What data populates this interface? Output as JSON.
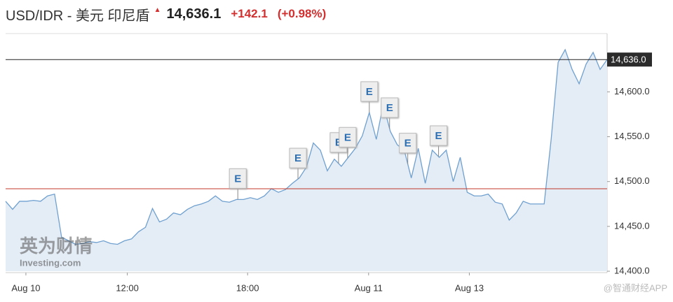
{
  "header": {
    "title": "USD/IDR - 美元 印尼盾",
    "price": "14,636.1",
    "change": "+142.1",
    "change_pct": "(+0.98%)"
  },
  "chart_data": {
    "type": "area",
    "values": [
      14478,
      14469,
      14478,
      14478,
      14479,
      14478,
      14484,
      14486,
      14438,
      14434,
      14430,
      14431,
      14433,
      14432,
      14434,
      14431,
      14430,
      14434,
      14436,
      14444,
      14449,
      14470,
      14455,
      14458,
      14465,
      14463,
      14469,
      14473,
      14475,
      14478,
      14484,
      14478,
      14477,
      14480,
      14480,
      14482,
      14480,
      14484,
      14492,
      14488,
      14491,
      14498,
      14504,
      14516,
      14543,
      14535,
      14512,
      14525,
      14517,
      14527,
      14537,
      14551,
      14577,
      14547,
      14586,
      14556,
      14541,
      14535,
      14504,
      14537,
      14498,
      14535,
      14527,
      14535,
      14500,
      14527,
      14488,
      14484,
      14484,
      14486,
      14477,
      14475,
      14457,
      14465,
      14478,
      14475,
      14475,
      14475,
      14547,
      14633,
      14647,
      14625,
      14609,
      14631,
      14644,
      14625,
      14636
    ],
    "color": "#6fa0cf",
    "xlim": [
      0,
      86
    ],
    "xticks": [
      {
        "value": 2.9,
        "label": "Aug 10"
      },
      {
        "value": 17.4,
        "label": "12:00"
      },
      {
        "value": 34.6,
        "label": "18:00"
      },
      {
        "value": 51.9,
        "label": "Aug 11"
      },
      {
        "value": 66.3,
        "label": "Aug 13"
      }
    ],
    "ylim": [
      14400,
      14665
    ],
    "yticks": [
      {
        "value": 14400,
        "label": "14,400.0"
      },
      {
        "value": 14450,
        "label": "14,450.0"
      },
      {
        "value": 14500,
        "label": "14,500.0"
      },
      {
        "value": 14550,
        "label": "14,550.0"
      },
      {
        "value": 14600,
        "label": "14,600.0"
      }
    ],
    "current_price": {
      "value": 14636,
      "label": "14,636.0"
    },
    "reference_line": 14492,
    "events": [
      {
        "x": 33.2,
        "label": "E"
      },
      {
        "x": 41.8,
        "label": "E"
      },
      {
        "x": 47.6,
        "label": "E"
      },
      {
        "x": 48.9,
        "label": "E"
      },
      {
        "x": 52,
        "label": "E"
      },
      {
        "x": 54.9,
        "label": "E"
      },
      {
        "x": 57.5,
        "label": "E"
      },
      {
        "x": 61.9,
        "label": "E"
      }
    ],
    "watermark": "英为财情",
    "watermark_sub": "Investing.com",
    "source": "@智通财经APP"
  }
}
